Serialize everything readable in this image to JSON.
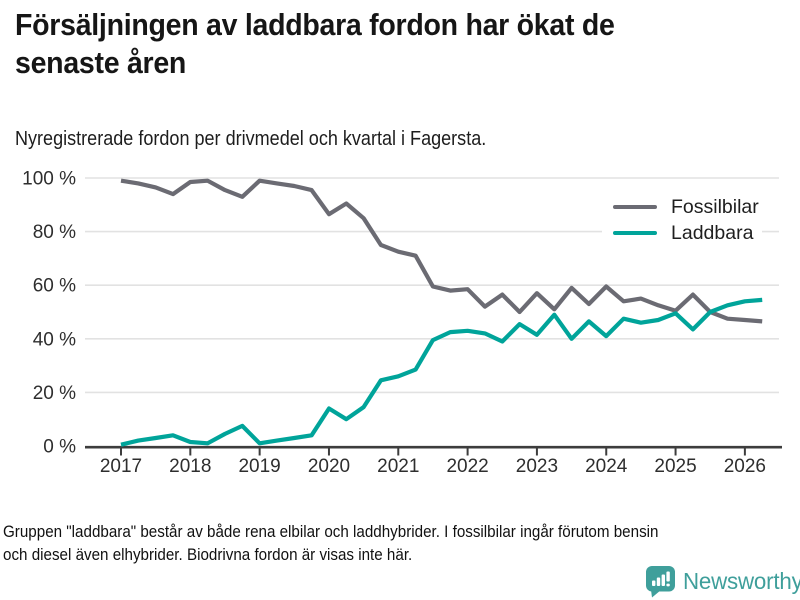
{
  "header": {
    "title": "Försäljningen av laddbara fordon har ökat de\nsenaste åren",
    "subtitle": "Nyregistrerade fordon per drivmedel och kvartal i Fagersta."
  },
  "chart_data": {
    "type": "line",
    "x": [
      "2017 Q1",
      "2017 Q2",
      "2017 Q3",
      "2017 Q4",
      "2018 Q1",
      "2018 Q2",
      "2018 Q3",
      "2018 Q4",
      "2019 Q1",
      "2019 Q2",
      "2019 Q3",
      "2019 Q4",
      "2020 Q1",
      "2020 Q2",
      "2020 Q3",
      "2020 Q4",
      "2021 Q1",
      "2021 Q2",
      "2021 Q3",
      "2021 Q4",
      "2022 Q1",
      "2022 Q2",
      "2022 Q3",
      "2022 Q4",
      "2023 Q1",
      "2023 Q2",
      "2023 Q3",
      "2023 Q4",
      "2024 Q1",
      "2024 Q2",
      "2024 Q3",
      "2024 Q4",
      "2025 Q1",
      "2025 Q2",
      "2025 Q3",
      "2025 Q4",
      "2026 Q1",
      "2026 Q2"
    ],
    "series": [
      {
        "name": "Fossilbilar",
        "color": "#6b6b73",
        "values": [
          99,
          98,
          96.5,
          94,
          98.5,
          99,
          95.5,
          93,
          99,
          98,
          97,
          95.5,
          86.5,
          90.5,
          85,
          75,
          72.5,
          71,
          59.5,
          58,
          58.5,
          52,
          56.5,
          50,
          57,
          51,
          59,
          53,
          59.5,
          54,
          55,
          52.5,
          50.5,
          56.5,
          50,
          47.5,
          47,
          46.5
        ]
      },
      {
        "name": "Laddbara",
        "color": "#00a49a",
        "values": [
          0.5,
          2,
          3,
          4,
          1.5,
          1,
          4.5,
          7.5,
          1,
          2,
          3,
          4,
          14,
          10,
          14.5,
          24.5,
          26,
          28.5,
          39.5,
          42.5,
          43,
          42,
          39,
          45.5,
          41.5,
          49,
          40,
          46.5,
          41,
          47.5,
          46,
          47,
          49.5,
          43.5,
          50,
          52.5,
          54,
          54.5
        ]
      }
    ],
    "x_tick_labels": [
      "2017",
      "2018",
      "2019",
      "2020",
      "2021",
      "2022",
      "2023",
      "2024",
      "2025",
      "2026"
    ],
    "y_tick_labels": [
      "0 %",
      "20 %",
      "40 %",
      "60 %",
      "80 %",
      "100 %"
    ],
    "ylim": [
      0,
      100
    ],
    "grid": true,
    "legend_position": "top-right",
    "colors": {
      "grid": "#e2e2e2",
      "axis": "#3d3d3d",
      "tick_text": "#2e2e2e"
    }
  },
  "legend": {
    "items": [
      {
        "label": "Fossilbilar",
        "color": "#6b6b73"
      },
      {
        "label": "Laddbara",
        "color": "#00a49a"
      }
    ]
  },
  "footnote": "Gruppen \"laddbara\" består av både rena elbilar och laddhybrider. I fossilbilar ingår förutom bensin\noch diesel även elhybrider. Biodrivna fordon är visas inte här.",
  "logo": {
    "text": "Newsworthy",
    "color": "#3f9f9b"
  }
}
